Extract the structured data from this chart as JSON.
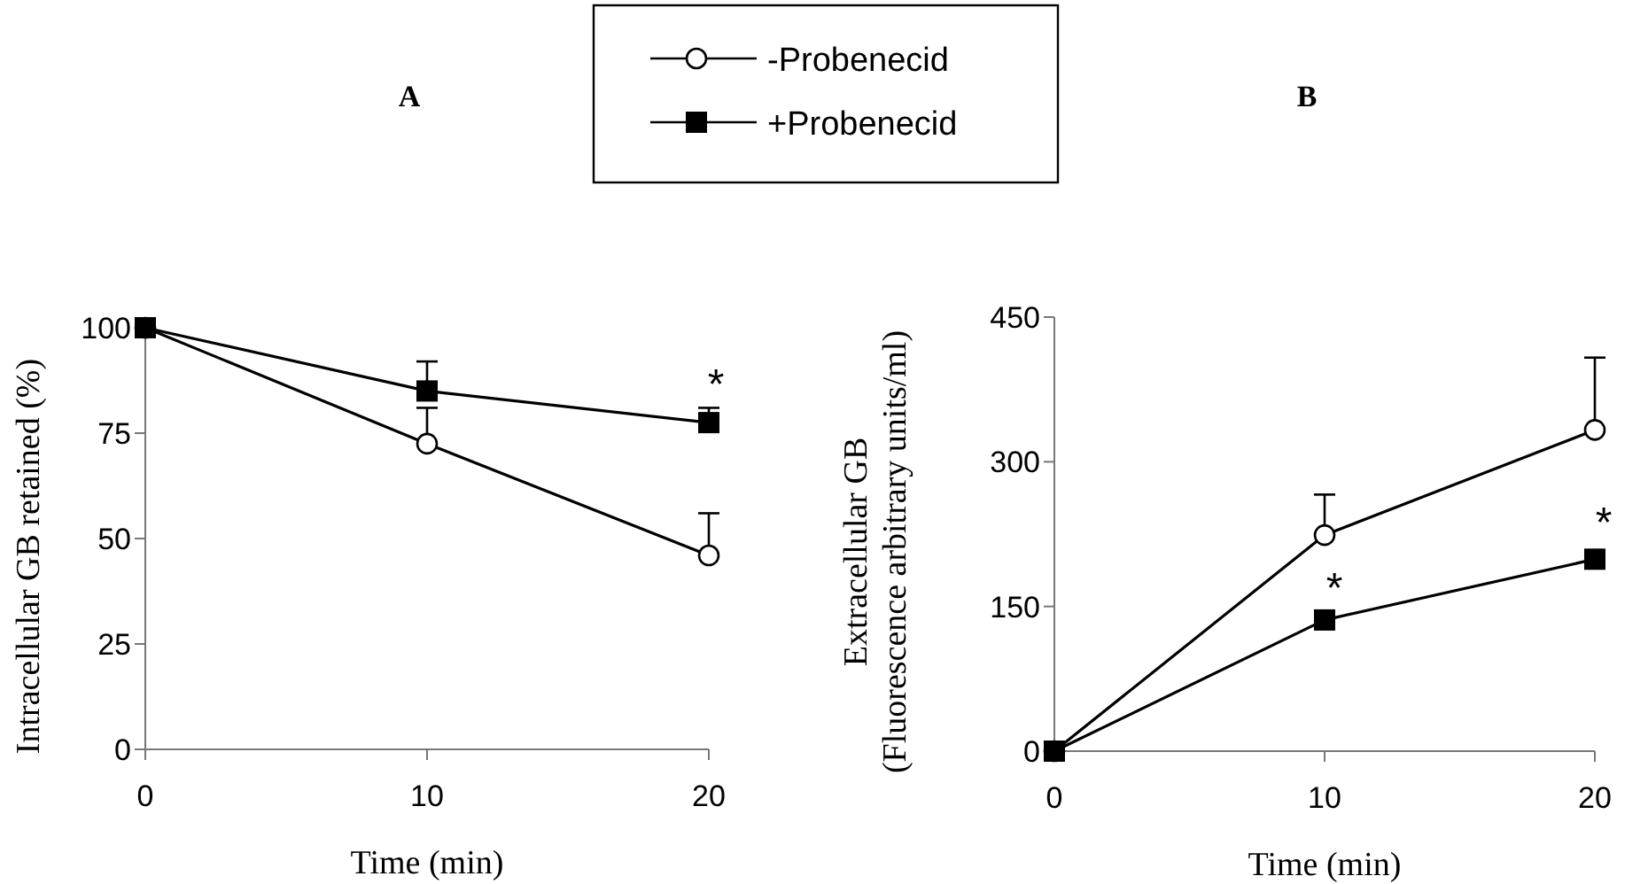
{
  "chart_data": [
    {
      "type": "line",
      "title": "A",
      "xlabel": "Time (min)",
      "ylabel": "Intracellular GB retained (%)",
      "x": [
        0,
        10,
        20
      ],
      "xlim": [
        0,
        20
      ],
      "xticks": [
        0,
        10,
        20
      ],
      "ylim": [
        0,
        100
      ],
      "yticks": [
        0,
        25,
        50,
        75,
        100
      ],
      "grid": false,
      "legend": "top",
      "series": [
        {
          "name": "-Probenecid",
          "color": "#000000",
          "marker": "circle",
          "values": [
            100,
            72.5,
            46
          ],
          "errors": [
            null,
            [
              72.5,
              81
            ],
            [
              46,
              56
            ]
          ]
        },
        {
          "name": "+Probenecid",
          "color": "#000000",
          "marker": "square",
          "values": [
            100,
            85,
            77.5
          ],
          "errors": [
            null,
            [
              85,
              92
            ],
            [
              77.5,
              81
            ]
          ]
        }
      ],
      "annotations": [
        "*"
      ]
    },
    {
      "type": "line",
      "title": "B",
      "xlabel": "Time (min)",
      "ylabel": "Extracellular GB\n(Fluorescence arbitrary units/ml)",
      "x": [
        0,
        10,
        20
      ],
      "xlim": [
        0,
        20
      ],
      "xticks": [
        0,
        10,
        20
      ],
      "ylim": [
        0,
        450
      ],
      "yticks": [
        0,
        150,
        300,
        450
      ],
      "grid": false,
      "series": [
        {
          "color": "#000000",
          "marker": "circle",
          "values": [
            0,
            224,
            333
          ],
          "errors": [
            null,
            [
              224,
              266
            ],
            [
              333,
              408
            ]
          ]
        },
        {
          "color": "#000000",
          "marker": "square",
          "values": [
            0,
            136,
            199
          ],
          "errors": [
            null,
            null,
            [
              199,
              206
            ]
          ]
        }
      ],
      "annotations": [
        "*",
        "*"
      ]
    }
  ]
}
